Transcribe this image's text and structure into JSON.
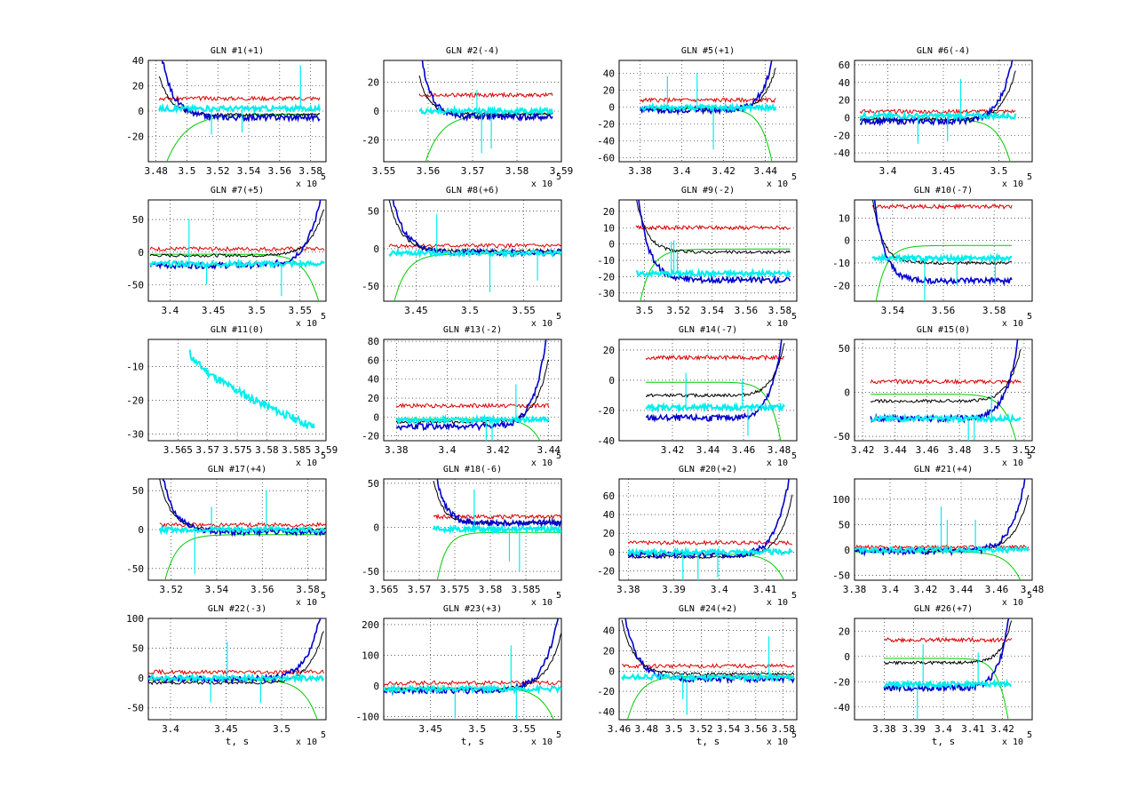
{
  "figure": {
    "colors": {
      "red": "#dd0000",
      "black": "#000000",
      "green": "#00cc00",
      "blue": "#0000cc",
      "cyan": "#00eeee"
    }
  },
  "chart_data": [
    {
      "type": "line",
      "title": "GLN #1(+1)",
      "xlim": [
        3.475,
        3.59
      ],
      "ylim": [
        -40,
        40
      ],
      "xticks": [
        "3.48",
        "3.5",
        "3.52",
        "3.54",
        "3.56",
        "3.58"
      ],
      "yticks": [
        "-20",
        "0",
        "20",
        "40"
      ],
      "mult": "x 10",
      "exp": "5",
      "xlabel": "",
      "level": {
        "red": 10,
        "black": -3,
        "blue": -5,
        "cyan": 2
      },
      "x_range": [
        3.482,
        3.586
      ],
      "profile": "flat"
    },
    {
      "type": "line",
      "title": "GLN #2(-4)",
      "xlim": [
        3.55,
        3.59
      ],
      "ylim": [
        -35,
        35
      ],
      "xticks": [
        "3.55",
        "3.56",
        "3.57",
        "3.58",
        "3.59"
      ],
      "yticks": [
        "-20",
        "0",
        "20"
      ],
      "mult": "x 10",
      "exp": "5",
      "xlabel": "",
      "level": {
        "red": 11,
        "black": -2,
        "blue": -4,
        "cyan": 0
      },
      "x_range": [
        3.558,
        3.588
      ],
      "profile": "flat"
    },
    {
      "type": "line",
      "title": "GLN #5(+1)",
      "xlim": [
        3.37,
        3.455
      ],
      "ylim": [
        -65,
        55
      ],
      "xticks": [
        "3.38",
        "3.4",
        "3.42",
        "3.44"
      ],
      "yticks": [
        "-60",
        "-40",
        "-20",
        "0",
        "20",
        "40"
      ],
      "mult": "x 10",
      "exp": "5",
      "xlabel": "",
      "level": {
        "red": 8,
        "black": -2,
        "blue": -4,
        "cyan": -1
      },
      "x_range": [
        3.38,
        3.445
      ],
      "profile": "rise"
    },
    {
      "type": "line",
      "title": "GLN #6(-4)",
      "xlim": [
        3.37,
        3.53
      ],
      "ylim": [
        -50,
        65
      ],
      "xticks": [
        "3.4",
        "3.45",
        "3.5"
      ],
      "yticks": [
        "-40",
        "-20",
        "0",
        "20",
        "40",
        "60"
      ],
      "mult": "x 10",
      "exp": "5",
      "xlabel": "",
      "level": {
        "red": 7,
        "black": -2,
        "blue": -4,
        "cyan": 2
      },
      "x_range": [
        3.375,
        3.515
      ],
      "profile": "rise"
    },
    {
      "type": "line",
      "title": "GLN #7(+5)",
      "xlim": [
        3.375,
        3.58
      ],
      "ylim": [
        -75,
        80
      ],
      "xticks": [
        "3.4",
        "3.45",
        "3.5",
        "3.55"
      ],
      "yticks": [
        "-50",
        "0",
        "50"
      ],
      "mult": "x 10",
      "exp": "5",
      "xlabel": "",
      "level": {
        "red": 5,
        "black": -5,
        "blue": -20,
        "cyan": -18
      },
      "x_range": [
        3.377,
        3.578
      ],
      "profile": "rise"
    },
    {
      "type": "line",
      "title": "GLN #8(+6)",
      "xlim": [
        3.42,
        3.585
      ],
      "ylim": [
        -70,
        65
      ],
      "xticks": [
        "3.45",
        "3.5",
        "3.55"
      ],
      "yticks": [
        "-50",
        "0",
        "50"
      ],
      "mult": "x 10",
      "exp": "5",
      "xlabel": "",
      "level": {
        "red": 4,
        "black": -3,
        "blue": -5,
        "cyan": -6
      },
      "x_range": [
        3.425,
        3.585
      ],
      "profile": "decay"
    },
    {
      "type": "line",
      "title": "GLN #9(-2)",
      "xlim": [
        3.485,
        3.59
      ],
      "ylim": [
        -35,
        27
      ],
      "xticks": [
        "3.5",
        "3.52",
        "3.54",
        "3.56",
        "3.58"
      ],
      "yticks": [
        "-30",
        "-20",
        "-10",
        "0",
        "10",
        "20"
      ],
      "mult": "x 10",
      "exp": "5",
      "xlabel": "",
      "level": {
        "red": 10,
        "black": -5,
        "blue": -22,
        "cyan": -18
      },
      "x_range": [
        3.495,
        3.586
      ],
      "profile": "decay"
    },
    {
      "type": "line",
      "title": "GLN #10(-7)",
      "xlim": [
        3.525,
        3.595
      ],
      "ylim": [
        -27,
        18
      ],
      "xticks": [
        "3.54",
        "3.56",
        "3.58"
      ],
      "yticks": [
        "-20",
        "-10",
        "0",
        "10"
      ],
      "mult": "x 10",
      "exp": "5",
      "xlabel": "",
      "level": {
        "red": 15,
        "black": -10,
        "blue": -18,
        "cyan": -8
      },
      "x_range": [
        3.532,
        3.587
      ],
      "profile": "decay"
    },
    {
      "type": "line",
      "title": "GLN #11(0)",
      "xlim": [
        3.56,
        3.59
      ],
      "ylim": [
        -32,
        -2
      ],
      "xticks": [
        "3.565",
        "3.57",
        "3.575",
        "3.58",
        "3.585",
        "3.59"
      ],
      "yticks": [
        "-30",
        "-20",
        "-10"
      ],
      "mult": "x 10",
      "exp": "5",
      "xlabel": "",
      "level": {
        "cyan_start": -6,
        "cyan_end": -28
      },
      "x_range": [
        3.567,
        3.588
      ],
      "profile": "cyan-only"
    },
    {
      "type": "line",
      "title": "GLN #13(-2)",
      "xlim": [
        3.375,
        3.445
      ],
      "ylim": [
        -25,
        82
      ],
      "xticks": [
        "3.38",
        "3.4",
        "3.42",
        "3.44"
      ],
      "yticks": [
        "-20",
        "0",
        "20",
        "40",
        "60",
        "80"
      ],
      "mult": "x 10",
      "exp": "5",
      "xlabel": "",
      "level": {
        "red": 12,
        "black": -5,
        "blue": -10,
        "cyan": -3
      },
      "x_range": [
        3.38,
        3.44
      ],
      "profile": "rise"
    },
    {
      "type": "line",
      "title": "GLN #14(-7)",
      "xlim": [
        3.39,
        3.49
      ],
      "ylim": [
        -40,
        27
      ],
      "xticks": [
        "3.42",
        "3.44",
        "3.46",
        "3.48"
      ],
      "yticks": [
        "-40",
        "-20",
        "0",
        "20"
      ],
      "mult": "x 10",
      "exp": "5",
      "xlabel": "",
      "level": {
        "red": 15,
        "black": -10,
        "blue": -25,
        "cyan": -18
      },
      "x_range": [
        3.405,
        3.483
      ],
      "profile": "rise"
    },
    {
      "type": "line",
      "title": "GLN #15(0)",
      "xlim": [
        3.415,
        3.525
      ],
      "ylim": [
        -55,
        60
      ],
      "xticks": [
        "3.42",
        "3.44",
        "3.46",
        "3.48",
        "3.5",
        "3.52"
      ],
      "yticks": [
        "-50",
        "0",
        "50"
      ],
      "mult": "x 10",
      "exp": "5",
      "xlabel": "",
      "level": {
        "red": 12,
        "black": -10,
        "blue": -30,
        "cyan": -30
      },
      "x_range": [
        3.425,
        3.518
      ],
      "profile": "rise"
    },
    {
      "type": "line",
      "title": "GLN #17(+4)",
      "xlim": [
        3.51,
        3.588
      ],
      "ylim": [
        -65,
        65
      ],
      "xticks": [
        "3.52",
        "3.54",
        "3.56",
        "3.58"
      ],
      "yticks": [
        "-50",
        "0",
        "50"
      ],
      "mult": "x 10",
      "exp": "5",
      "xlabel": "",
      "level": {
        "red": 6,
        "black": 0,
        "blue": -3,
        "cyan": 0
      },
      "x_range": [
        3.515,
        3.588
      ],
      "profile": "decay"
    },
    {
      "type": "line",
      "title": "GLN #18(-6)",
      "xlim": [
        3.565,
        3.59
      ],
      "ylim": [
        -60,
        55
      ],
      "xticks": [
        "3.565",
        "3.57",
        "3.575",
        "3.58",
        "3.585"
      ],
      "yticks": [
        "-50",
        "0",
        "50"
      ],
      "mult": "x 10",
      "exp": "5",
      "xlabel": "",
      "level": {
        "red": 12,
        "black": 5,
        "blue": 5,
        "cyan": -2
      },
      "x_range": [
        3.572,
        3.59
      ],
      "profile": "decay"
    },
    {
      "type": "line",
      "title": "GLN #20(+2)",
      "xlim": [
        3.378,
        3.417
      ],
      "ylim": [
        -30,
        78
      ],
      "xticks": [
        "3.38",
        "3.39",
        "3.4",
        "3.41"
      ],
      "yticks": [
        "-20",
        "0",
        "20",
        "40",
        "60"
      ],
      "mult": "x 10",
      "exp": "5",
      "xlabel": "",
      "level": {
        "red": 10,
        "black": -5,
        "blue": -3,
        "cyan": 0
      },
      "x_range": [
        3.38,
        3.416
      ],
      "profile": "rise"
    },
    {
      "type": "line",
      "title": "GLN #21(+4)",
      "xlim": [
        3.38,
        3.48
      ],
      "ylim": [
        -60,
        140
      ],
      "xticks": [
        "3.38",
        "3.4",
        "3.42",
        "3.44",
        "3.46",
        "3.48"
      ],
      "yticks": [
        "-50",
        "0",
        "50",
        "100"
      ],
      "mult": "x 10",
      "exp": "5",
      "xlabel": "",
      "level": {
        "red": 5,
        "black": -2,
        "blue": -3,
        "cyan": 0
      },
      "x_range": [
        3.38,
        3.478
      ],
      "profile": "rise"
    },
    {
      "type": "line",
      "title": "GLN #22(-3)",
      "xlim": [
        3.38,
        3.54
      ],
      "ylim": [
        -70,
        100
      ],
      "xticks": [
        "3.4",
        "3.45",
        "3.5"
      ],
      "yticks": [
        "-50",
        "0",
        "50",
        "100"
      ],
      "mult": "x 10",
      "exp": "5",
      "xlabel": "t, s",
      "level": {
        "red": 10,
        "black": -8,
        "blue": -2,
        "cyan": 0
      },
      "x_range": [
        3.38,
        3.538
      ],
      "profile": "rise"
    },
    {
      "type": "line",
      "title": "GLN #23(+3)",
      "xlim": [
        3.4,
        3.59
      ],
      "ylim": [
        -110,
        220
      ],
      "xticks": [
        "3.45",
        "3.5",
        "3.55"
      ],
      "yticks": [
        "-100",
        "0",
        "100",
        "200"
      ],
      "mult": "x 10",
      "exp": "5",
      "xlabel": "t, s",
      "level": {
        "red": 10,
        "black": -10,
        "blue": -15,
        "cyan": -10
      },
      "x_range": [
        3.4,
        3.59
      ],
      "profile": "rise"
    },
    {
      "type": "line",
      "title": "GLN #24(+2)",
      "xlim": [
        3.46,
        3.59
      ],
      "ylim": [
        -48,
        52
      ],
      "xticks": [
        "3.46",
        "3.48",
        "3.5",
        "3.52",
        "3.54",
        "3.56",
        "3.58"
      ],
      "yticks": [
        "-40",
        "-20",
        "0",
        "20",
        "40"
      ],
      "mult": "x 10",
      "exp": "5",
      "xlabel": "t, s",
      "level": {
        "red": 5,
        "black": -3,
        "blue": -8,
        "cyan": -6
      },
      "x_range": [
        3.462,
        3.588
      ],
      "profile": "decay"
    },
    {
      "type": "line",
      "title": "GLN #26(+7)",
      "xlim": [
        3.37,
        3.43
      ],
      "ylim": [
        -50,
        30
      ],
      "xticks": [
        "3.38",
        "3.39",
        "3.4",
        "3.41",
        "3.42"
      ],
      "yticks": [
        "-40",
        "-20",
        "0",
        "20"
      ],
      "mult": "x 10",
      "exp": "5",
      "xlabel": "t, s",
      "level": {
        "red": 13,
        "black": -5,
        "blue": -25,
        "cyan": -22
      },
      "x_range": [
        3.38,
        3.423
      ],
      "profile": "rise"
    }
  ]
}
